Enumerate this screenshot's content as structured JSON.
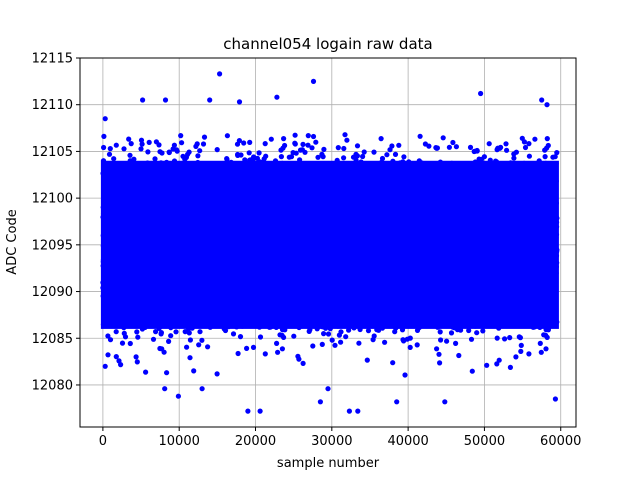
{
  "chart_data": {
    "type": "scatter",
    "title": "channel054 logain raw data",
    "xlabel": "sample number",
    "ylabel": "ADC Code",
    "xlim": [
      -3000,
      62000
    ],
    "ylim": [
      12075.5,
      12115
    ],
    "xticks": [
      0,
      10000,
      20000,
      30000,
      40000,
      50000,
      60000
    ],
    "yticks": [
      12080,
      12085,
      12090,
      12095,
      12100,
      12105,
      12110,
      12115
    ],
    "grid": true,
    "legend": "none",
    "marker_color": "#0000ff",
    "series": [
      {
        "x_range": [
          0,
          59500
        ],
        "mean": 12095,
        "core_range": [
          12086,
          12104
        ],
        "outliers": [
          [
            300,
            12108.5
          ],
          [
            5200,
            12110.5
          ],
          [
            8200,
            12110.5
          ],
          [
            14000,
            12110.5
          ],
          [
            15300,
            12113.3
          ],
          [
            17900,
            12110.3
          ],
          [
            22800,
            12110.8
          ],
          [
            27600,
            12112.5
          ],
          [
            49500,
            12111.2
          ],
          [
            57500,
            12110.5
          ],
          [
            58200,
            12110
          ],
          [
            300,
            12082
          ],
          [
            9900,
            12078.8
          ],
          [
            19000,
            12077.2
          ],
          [
            20600,
            12077.2
          ],
          [
            28500,
            12078.2
          ],
          [
            32300,
            12077.2
          ],
          [
            33400,
            12077.2
          ],
          [
            38500,
            12078.2
          ],
          [
            44800,
            12078.2
          ],
          [
            59300,
            12078.5
          ],
          [
            8100,
            12079.6
          ],
          [
            13000,
            12079.6
          ],
          [
            29500,
            12079.6
          ]
        ]
      }
    ]
  }
}
